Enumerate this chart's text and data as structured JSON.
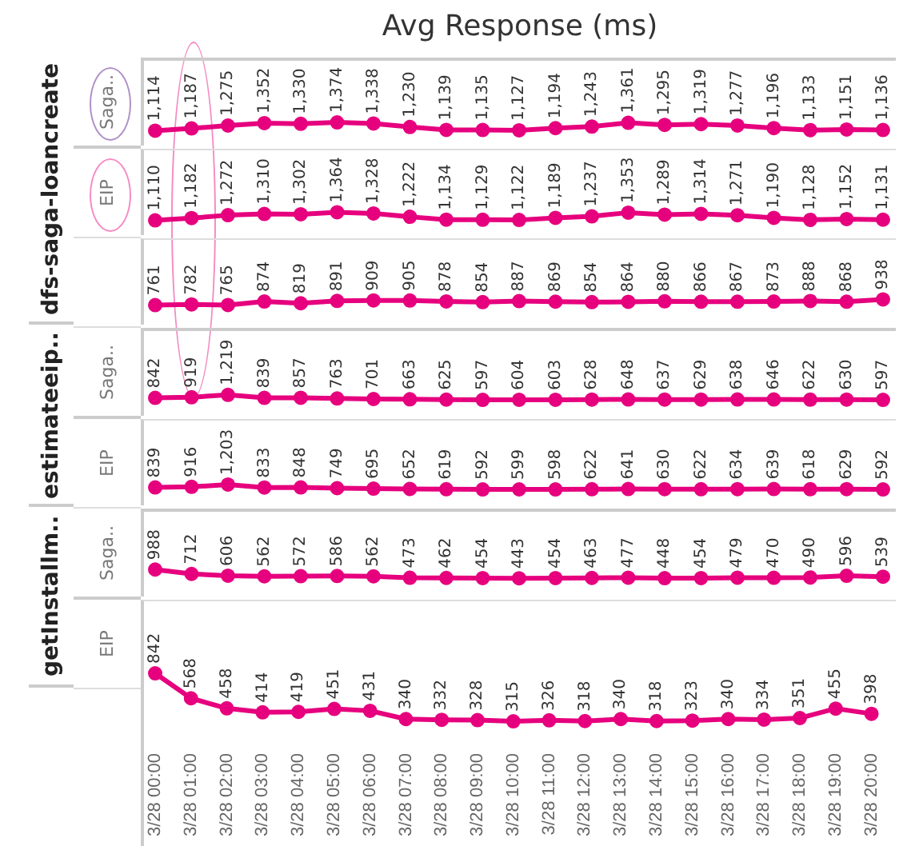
{
  "chart_data": [
    {
      "type": "other",
      "title": "Avg Response (ms)"
    },
    {
      "type": "line",
      "title": "dfs-saga-loancreate",
      "ylabel": "Saga..",
      "categories": [
        null,
        null,
        null,
        null,
        null,
        null,
        null,
        null,
        null,
        null,
        null,
        null,
        null,
        null,
        null,
        null,
        null,
        null,
        null,
        null,
        null
      ],
      "values": [
        1114,
        1187,
        1275,
        1352,
        1330,
        1374,
        1338,
        1230,
        1139,
        1135,
        1127,
        1194,
        1243,
        1361,
        1295,
        1319,
        1277,
        1196,
        1133,
        1151,
        1136
      ],
      "value_labels": [
        "1,114",
        "1,187",
        "1,275",
        "1,352",
        "1,330",
        "1,374",
        "1,338",
        "1,230",
        "1,139",
        "1,135",
        "1,127",
        "1,194",
        "1,243",
        "1,361",
        "1,295",
        "1,319",
        "1,277",
        "1,196",
        "1,133",
        "1,151",
        "1,136"
      ],
      "color": "#e6007e",
      "marker": "circle",
      "tick_labels": false
    },
    {
      "type": "line",
      "ylabel": "EIP",
      "categories": [
        null,
        null,
        null,
        null,
        null,
        null,
        null,
        null,
        null,
        null,
        null,
        null,
        null,
        null,
        null,
        null,
        null,
        null,
        null,
        null,
        null
      ],
      "values": [
        1110,
        1182,
        1272,
        1310,
        1302,
        1364,
        1328,
        1222,
        1134,
        1129,
        1122,
        1189,
        1237,
        1353,
        1289,
        1314,
        1271,
        1190,
        1128,
        1152,
        1131
      ],
      "value_labels": [
        "1,110",
        "1,182",
        "1,272",
        "1,310",
        "1,302",
        "1,364",
        "1,328",
        "1,222",
        "1,134",
        "1,129",
        "1,122",
        "1,189",
        "1,237",
        "1,353",
        "1,289",
        "1,314",
        "1,271",
        "1,190",
        "1,128",
        "1,152",
        "1,131"
      ],
      "color": "#e6007e",
      "marker": "circle",
      "tick_labels": false
    },
    {
      "type": "line",
      "categories": [
        null,
        null,
        null,
        null,
        null,
        null,
        null,
        null,
        null,
        null,
        null,
        null,
        null,
        null,
        null,
        null,
        null,
        null,
        null,
        null,
        null
      ],
      "values": [
        761,
        782,
        765,
        874,
        819,
        891,
        909,
        905,
        878,
        854,
        887,
        869,
        854,
        864,
        880,
        866,
        867,
        873,
        888,
        868,
        938
      ],
      "color": "#e6007e",
      "marker": "circle",
      "data_labels": true,
      "tick_labels": false
    },
    {
      "type": "line",
      "title": "estimateeip..",
      "ylabel": "Saga..",
      "categories": [
        null,
        null,
        null,
        null,
        null,
        null,
        null,
        null,
        null,
        null,
        null,
        null,
        null,
        null,
        null,
        null,
        null,
        null,
        null,
        null,
        null
      ],
      "values": [
        842,
        919,
        1219,
        839,
        857,
        763,
        701,
        663,
        625,
        597,
        604,
        603,
        628,
        648,
        637,
        629,
        638,
        646,
        622,
        630,
        597
      ],
      "value_labels": [
        "842",
        "919",
        "1,219",
        "839",
        "857",
        "763",
        "701",
        "663",
        "625",
        "597",
        "604",
        "603",
        "628",
        "648",
        "637",
        "629",
        "638",
        "646",
        "622",
        "630",
        "597"
      ],
      "color": "#e6007e",
      "marker": "circle",
      "tick_labels": false
    },
    {
      "type": "line",
      "ylabel": "EIP",
      "categories": [
        null,
        null,
        null,
        null,
        null,
        null,
        null,
        null,
        null,
        null,
        null,
        null,
        null,
        null,
        null,
        null,
        null,
        null,
        null,
        null,
        null
      ],
      "values": [
        839,
        916,
        1203,
        833,
        848,
        749,
        695,
        652,
        619,
        592,
        599,
        598,
        622,
        641,
        630,
        622,
        634,
        639,
        618,
        629,
        592
      ],
      "value_labels": [
        "839",
        "916",
        "1,203",
        "833",
        "848",
        "749",
        "695",
        "652",
        "619",
        "592",
        "599",
        "598",
        "622",
        "641",
        "630",
        "622",
        "634",
        "639",
        "618",
        "629",
        "592"
      ],
      "color": "#e6007e",
      "marker": "circle",
      "tick_labels": false
    },
    {
      "type": "line",
      "title": "getInstallm..",
      "ylabel": "Saga..",
      "categories": [
        null,
        null,
        null,
        null,
        null,
        null,
        null,
        null,
        null,
        null,
        null,
        null,
        null,
        null,
        null,
        null,
        null,
        null,
        null,
        null,
        null
      ],
      "values": [
        988,
        712,
        606,
        562,
        572,
        586,
        562,
        473,
        462,
        454,
        443,
        454,
        463,
        477,
        448,
        454,
        479,
        470,
        490,
        596,
        539
      ],
      "color": "#e6007e",
      "marker": "circle",
      "data_labels": true,
      "tick_labels": false
    },
    {
      "type": "line",
      "ylabel": "EIP",
      "categories": [
        "3/28 00:00",
        "3/28 01:00",
        "3/28 02:00",
        "3/28 03:00",
        "3/28 04:00",
        "3/28 05:00",
        "3/28 06:00",
        "3/28 07:00",
        "3/28 08:00",
        "3/28 09:00",
        "3/28 10:00",
        "3/28 11:00",
        "3/28 12:00",
        "3/28 13:00",
        "3/28 14:00",
        "3/28 15:00",
        "3/28 16:00",
        "3/28 17:00",
        "3/28 18:00",
        "3/28 19:00",
        "3/28 20:00"
      ],
      "values": [
        842,
        568,
        458,
        414,
        419,
        451,
        431,
        340,
        332,
        328,
        315,
        326,
        318,
        340,
        318,
        323,
        340,
        334,
        351,
        455,
        398
      ],
      "color": "#e6007e",
      "marker": "circle",
      "data_labels": true,
      "tick_labels": "x"
    }
  ]
}
